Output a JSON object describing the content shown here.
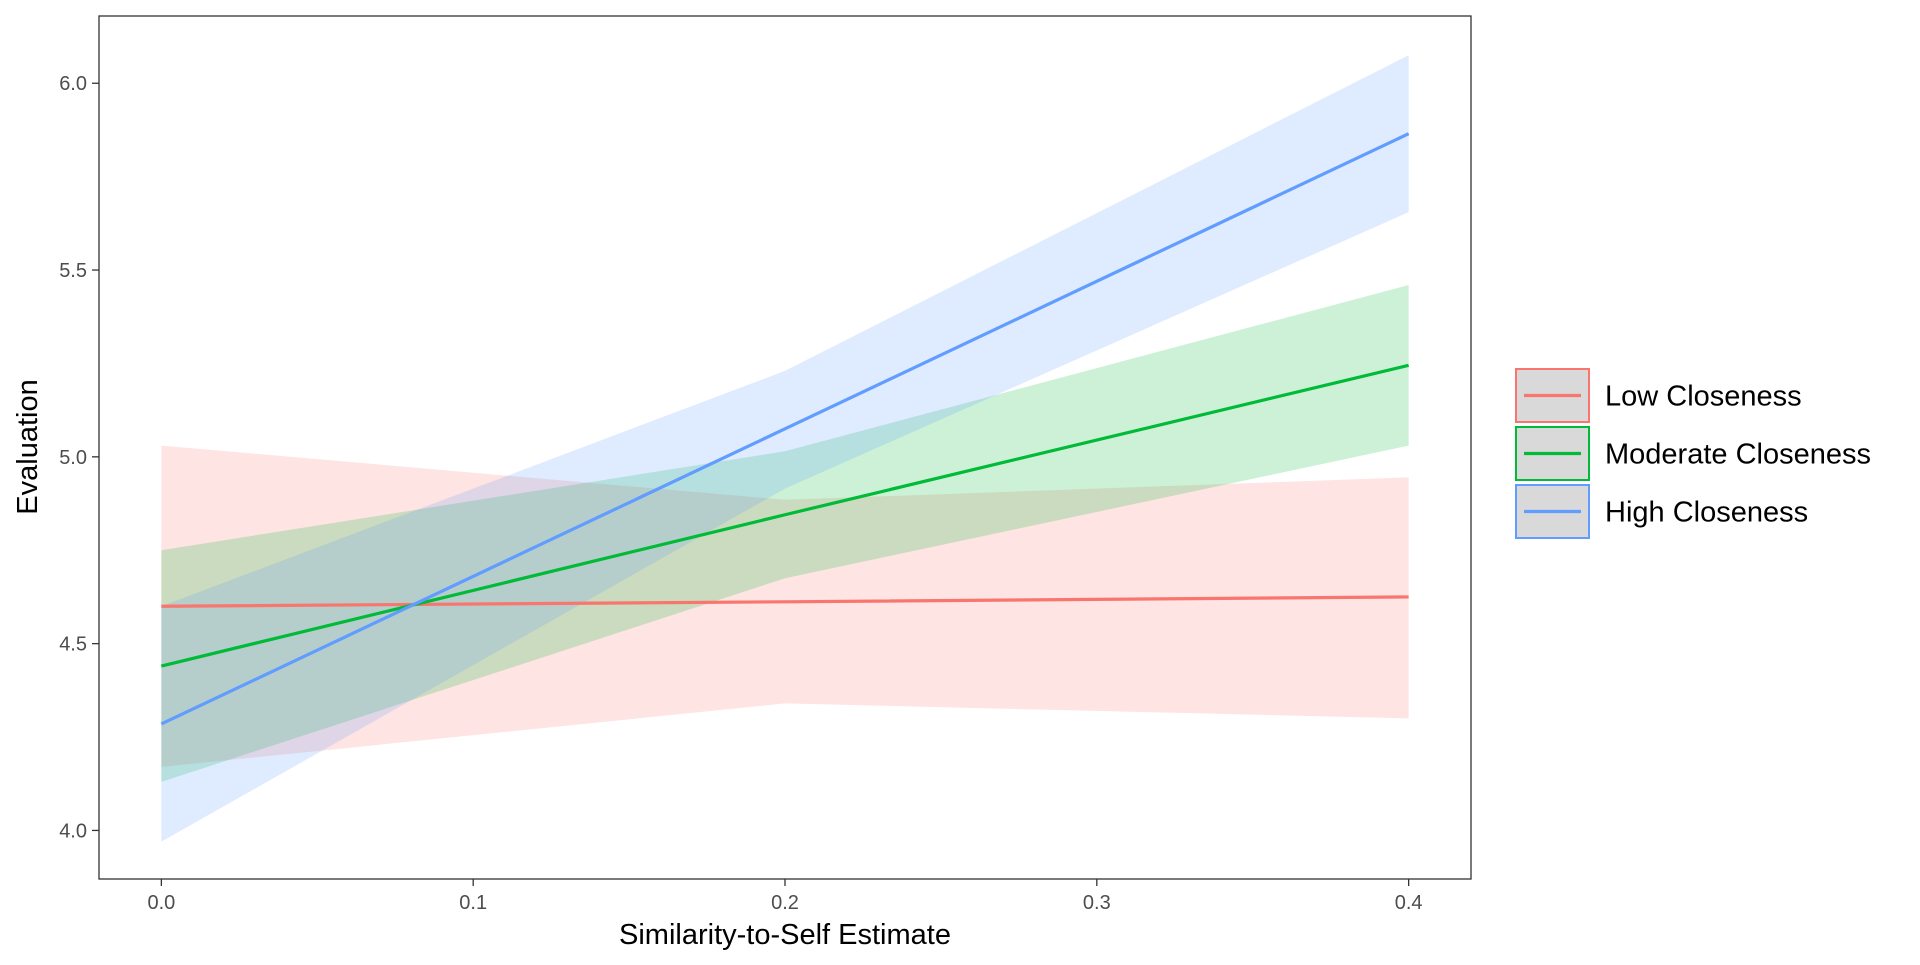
{
  "chart_data": {
    "type": "line",
    "title": "",
    "xlabel": "Similarity-to-Self Estimate",
    "ylabel": "Evaluation",
    "xlim": [
      -0.02,
      0.42
    ],
    "ylim": [
      3.87,
      6.18
    ],
    "x_ticks": [
      0.0,
      0.1,
      0.2,
      0.3,
      0.4
    ],
    "x_tick_labels": [
      "0.0",
      "0.1",
      "0.2",
      "0.3",
      "0.4"
    ],
    "y_ticks": [
      4.0,
      4.5,
      5.0,
      5.5,
      6.0
    ],
    "y_tick_labels": [
      "4.0",
      "4.5",
      "5.0",
      "5.5",
      "6.0"
    ],
    "grid": false,
    "legend_position": "right",
    "x": [
      0.0,
      0.2,
      0.4
    ],
    "series": [
      {
        "name": "Low Closeness",
        "color": "#f8766d",
        "values": [
          4.6,
          4.612,
          4.625
        ],
        "lower": [
          4.17,
          4.34,
          4.3
        ],
        "upper": [
          5.03,
          4.885,
          4.945
        ]
      },
      {
        "name": "Moderate Closeness",
        "color": "#00ba38",
        "values": [
          4.44,
          4.845,
          5.245
        ],
        "lower": [
          4.13,
          4.675,
          5.03
        ],
        "upper": [
          4.75,
          5.015,
          5.46
        ]
      },
      {
        "name": "High Closeness",
        "color": "#619cff",
        "values": [
          4.285,
          5.075,
          5.865
        ],
        "lower": [
          3.97,
          4.915,
          5.655
        ],
        "upper": [
          4.6,
          5.23,
          6.075
        ]
      }
    ]
  }
}
